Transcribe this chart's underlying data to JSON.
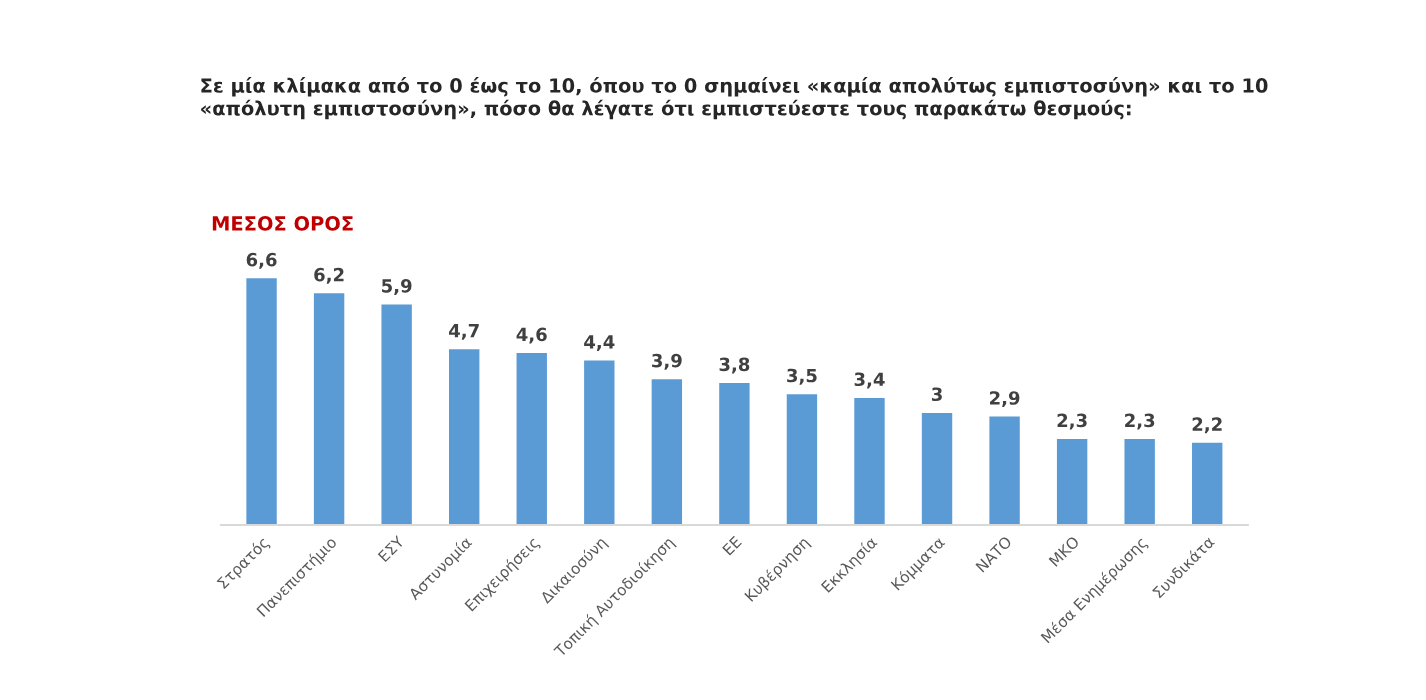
{
  "chart_data": {
    "type": "bar",
    "title": "Σε μία κλίμακα από το 0 έως το 10, όπου το 0 σημαίνει «καμία απολύτως εμπιστοσύνη» και το 10\n«απόλυτη εμπιστοσύνη», πόσο θα λέγατε ότι εμπιστεύεστε τους παρακάτω θεσμούς:",
    "subtitle": "ΜΕΣΟΣ ΟΡΟΣ",
    "categories": [
      "Στρατός",
      "Πανεπιστήμιο",
      "ΕΣΥ",
      "Αστυνομία",
      "Επιχειρήσεις",
      "Δικαιοσύνη",
      "Τοπική Αυτοδιοίκηση",
      "ΕΕ",
      "Κυβέρνηση",
      "Εκκλησία",
      "Κόμματα",
      "ΝΑΤΟ",
      "ΜΚΟ",
      "Μέσα Ενημέρωσης",
      "Συνδικάτα"
    ],
    "values": [
      6.6,
      6.2,
      5.9,
      4.7,
      4.6,
      4.4,
      3.9,
      3.8,
      3.5,
      3.4,
      3,
      2.9,
      2.3,
      2.3,
      2.2
    ],
    "value_labels": [
      "6,6",
      "6,2",
      "5,9",
      "4,7",
      "4,6",
      "4,4",
      "3,9",
      "3,8",
      "3,5",
      "3,4",
      "3",
      "2,9",
      "2,3",
      "2,3",
      "2,2"
    ],
    "color": "#5b9bd5",
    "tick_labels": "x",
    "grid": false,
    "legend": false
  }
}
